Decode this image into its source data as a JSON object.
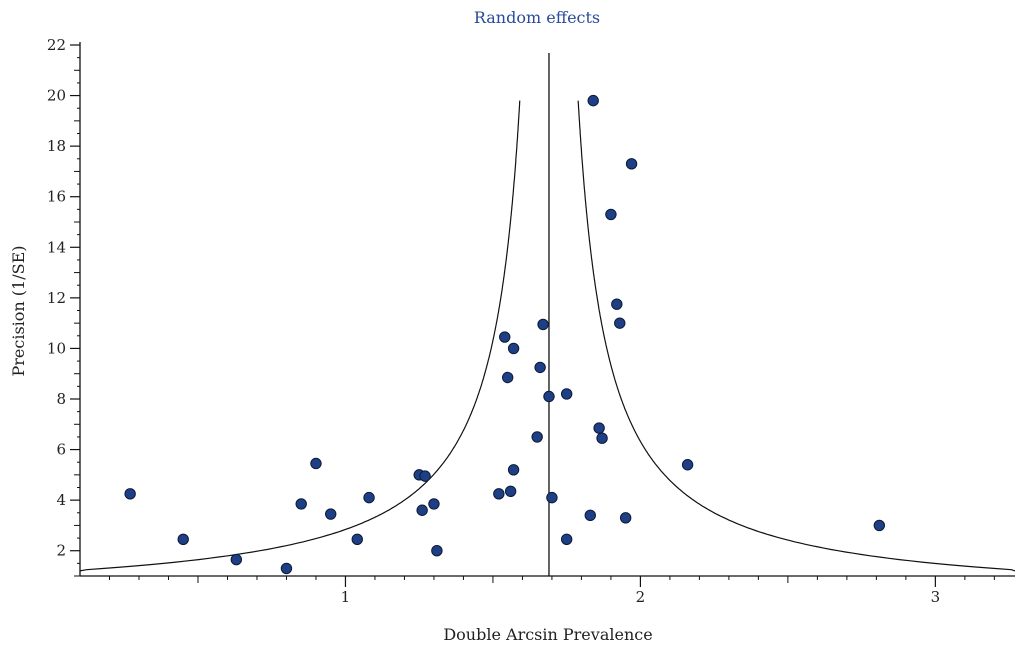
{
  "chart_data": {
    "type": "scatter",
    "title": "Random effects",
    "xlabel": "Double Arcsin Prevalence",
    "ylabel": "Precision (1/SE)",
    "xlim": [
      0.1,
      3.27
    ],
    "ylim": [
      1.0,
      22.0
    ],
    "x_ticks": [
      1,
      2,
      3
    ],
    "x_tick_labels": [
      "1",
      "2",
      "3"
    ],
    "y_ticks": [
      2,
      4,
      6,
      8,
      10,
      12,
      14,
      16,
      18,
      20,
      22
    ],
    "y_tick_labels": [
      "2",
      "4",
      "6",
      "8",
      "10",
      "12",
      "14",
      "16",
      "18",
      "20",
      "22"
    ],
    "pooled_estimate": 1.69,
    "funnel_ci_multiplier": 1.96,
    "funnel_max_precision": 19.8,
    "grid": false,
    "points": [
      {
        "x": 0.27,
        "y": 4.25
      },
      {
        "x": 0.45,
        "y": 2.45
      },
      {
        "x": 0.63,
        "y": 1.65
      },
      {
        "x": 0.8,
        "y": 1.3
      },
      {
        "x": 0.85,
        "y": 3.85
      },
      {
        "x": 0.9,
        "y": 5.45
      },
      {
        "x": 0.95,
        "y": 3.45
      },
      {
        "x": 1.04,
        "y": 2.45
      },
      {
        "x": 1.08,
        "y": 4.1
      },
      {
        "x": 1.25,
        "y": 5.0
      },
      {
        "x": 1.26,
        "y": 3.6
      },
      {
        "x": 1.27,
        "y": 4.95
      },
      {
        "x": 1.3,
        "y": 3.85
      },
      {
        "x": 1.31,
        "y": 2.0
      },
      {
        "x": 1.52,
        "y": 4.25
      },
      {
        "x": 1.54,
        "y": 10.45
      },
      {
        "x": 1.55,
        "y": 8.85
      },
      {
        "x": 1.56,
        "y": 4.35
      },
      {
        "x": 1.57,
        "y": 5.2
      },
      {
        "x": 1.57,
        "y": 10.0
      },
      {
        "x": 1.65,
        "y": 6.5
      },
      {
        "x": 1.66,
        "y": 9.25
      },
      {
        "x": 1.67,
        "y": 10.95
      },
      {
        "x": 1.69,
        "y": 8.1
      },
      {
        "x": 1.7,
        "y": 4.1
      },
      {
        "x": 1.75,
        "y": 8.2
      },
      {
        "x": 1.75,
        "y": 2.45
      },
      {
        "x": 1.83,
        "y": 3.4
      },
      {
        "x": 1.84,
        "y": 19.8
      },
      {
        "x": 1.86,
        "y": 6.85
      },
      {
        "x": 1.87,
        "y": 6.45
      },
      {
        "x": 1.9,
        "y": 15.3
      },
      {
        "x": 1.92,
        "y": 11.75
      },
      {
        "x": 1.93,
        "y": 11.0
      },
      {
        "x": 1.95,
        "y": 3.3
      },
      {
        "x": 1.97,
        "y": 17.3
      },
      {
        "x": 2.16,
        "y": 5.4
      },
      {
        "x": 2.81,
        "y": 3.0
      }
    ],
    "colors": {
      "point_fill": "#1f3f85",
      "point_stroke": "#0b1a3a",
      "line": "#111111",
      "title": "#2a4a9a"
    }
  }
}
